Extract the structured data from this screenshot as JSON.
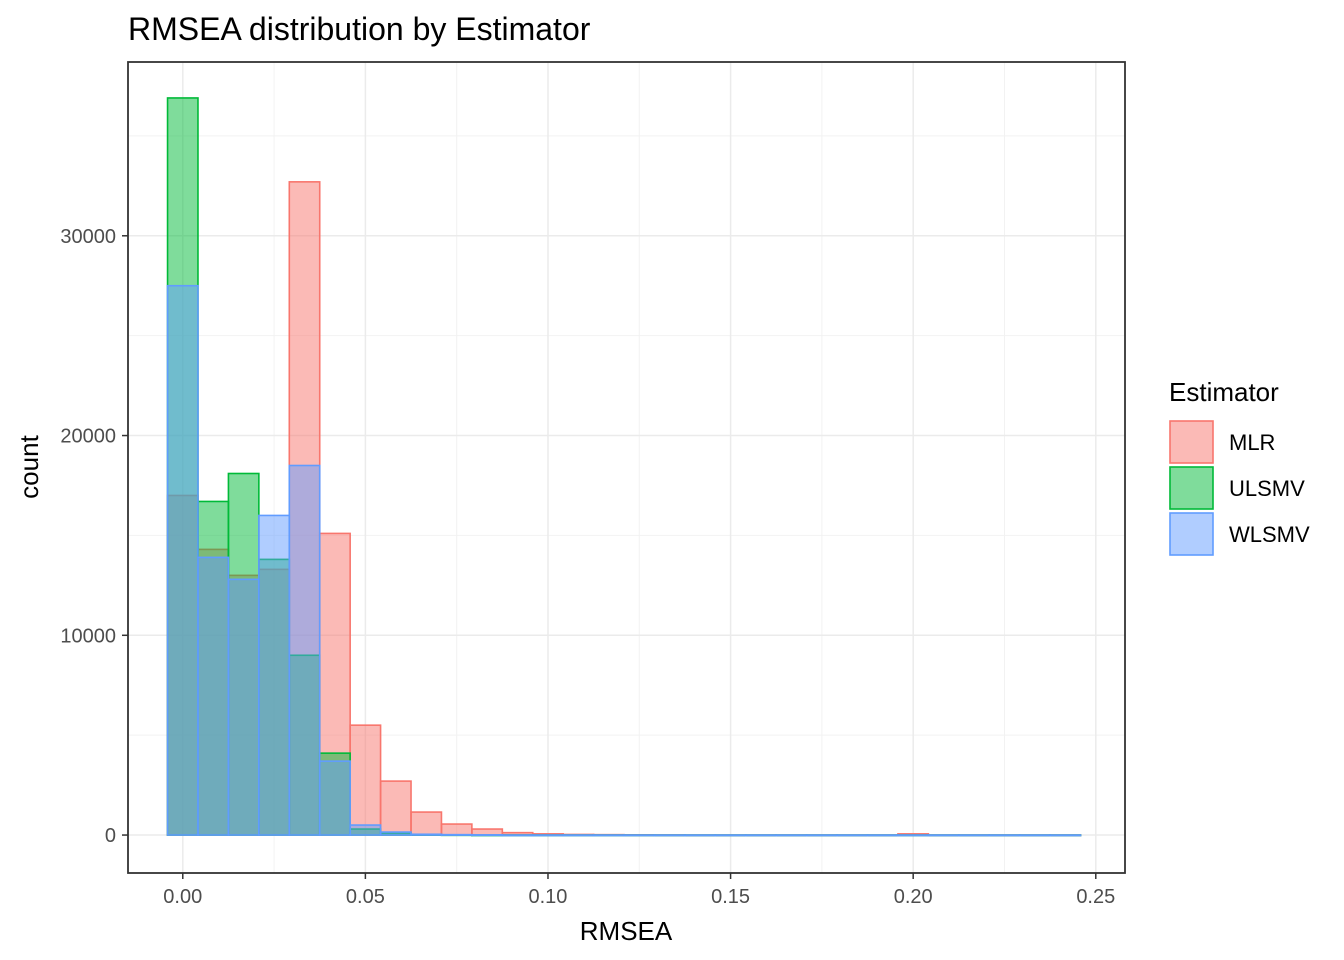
{
  "chart_data": {
    "type": "bar",
    "subtype": "overlaid histogram",
    "title": "RMSEA distribution by Estimator",
    "xlabel": "RMSEA",
    "ylabel": "count",
    "xlim": [
      -0.015,
      0.258
    ],
    "ylim": [
      -1900,
      38700
    ],
    "x_ticks": [
      0.0,
      0.05,
      0.1,
      0.15,
      0.2,
      0.25
    ],
    "x_tick_labels": [
      "0.00",
      "0.05",
      "0.10",
      "0.15",
      "0.20",
      "0.25"
    ],
    "y_ticks": [
      0,
      10000,
      20000,
      30000
    ],
    "y_tick_labels": [
      "0",
      "10000",
      "20000",
      "30000"
    ],
    "grid": true,
    "legend": {
      "title": "Estimator",
      "position": "right"
    },
    "bin_width": 0.00833,
    "bin_starts": [
      -0.00417,
      0.00417,
      0.0125,
      0.02083,
      0.02917,
      0.0375,
      0.04583,
      0.05417,
      0.0625,
      0.07083,
      0.07917,
      0.0875,
      0.09583,
      0.10417,
      0.1125,
      0.12083,
      0.12917,
      0.1375,
      0.14583,
      0.15417,
      0.1625,
      0.17083,
      0.17917,
      0.1875,
      0.19583,
      0.20417,
      0.2125,
      0.22083,
      0.22917,
      0.2375
    ],
    "series": [
      {
        "name": "MLR",
        "fill": "#F8766D",
        "values": [
          17000,
          14300,
          13000,
          13300,
          32700,
          15100,
          5500,
          2700,
          1150,
          550,
          300,
          120,
          60,
          30,
          20,
          10,
          5,
          0,
          0,
          0,
          0,
          0,
          0,
          0,
          60,
          0,
          0,
          0,
          0,
          0
        ]
      },
      {
        "name": "ULSMV",
        "fill": "#00BA38",
        "values": [
          36900,
          16700,
          18100,
          13800,
          9000,
          4100,
          300,
          100,
          20,
          10,
          0,
          0,
          0,
          0,
          0,
          0,
          0,
          0,
          0,
          0,
          0,
          0,
          0,
          0,
          0,
          0,
          0,
          0,
          0,
          0
        ]
      },
      {
        "name": "WLSMV",
        "fill": "#619CFF",
        "values": [
          27500,
          13900,
          12800,
          16000,
          18500,
          3700,
          500,
          150,
          40,
          20,
          10,
          0,
          0,
          0,
          0,
          0,
          0,
          0,
          0,
          0,
          0,
          0,
          0,
          0,
          0,
          0,
          0,
          0,
          0,
          0
        ]
      }
    ]
  }
}
